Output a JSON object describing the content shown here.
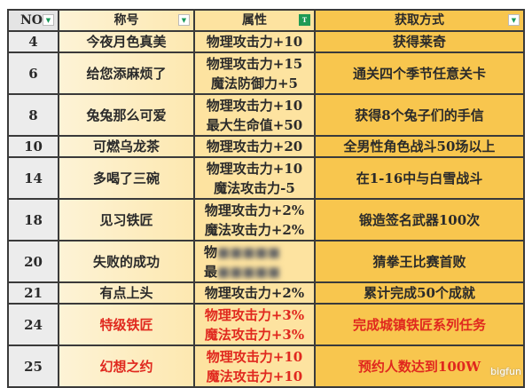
{
  "headers": [
    {
      "label": "NO.",
      "icon": "dropdown-icon"
    },
    {
      "label": "称号",
      "icon": "dropdown-icon"
    },
    {
      "label": "属性",
      "icon": "filter-icon"
    },
    {
      "label": "获取方式",
      "icon": "dropdown-icon"
    }
  ],
  "rows": [
    {
      "no": "4",
      "title": "今夜月色真美",
      "attr": [
        "物理攻击力+10"
      ],
      "method": "获得莱奇",
      "highlight": false
    },
    {
      "no": "6",
      "title": "给您添麻烦了",
      "attr": [
        "物理攻击力+15",
        "魔法防御力+5"
      ],
      "method": "通关四个季节任意关卡",
      "highlight": false
    },
    {
      "no": "8",
      "title": "兔兔那么可爱",
      "attr": [
        "物理攻击力+10",
        "最大生命值+50"
      ],
      "method": "获得8个兔子们的手信",
      "highlight": false
    },
    {
      "no": "10",
      "title": "可燃乌龙茶",
      "attr": [
        "物理攻击力+20"
      ],
      "method": "全男性角色战斗50场以上",
      "highlight": false
    },
    {
      "no": "14",
      "title": "多喝了三碗",
      "attr": [
        "物理攻击力+10",
        "魔法攻击力-5"
      ],
      "method": "在1-16中与白雪战斗",
      "highlight": false
    },
    {
      "no": "18",
      "title": "见习铁匠",
      "attr": [
        "物理攻击力+2%",
        "魔法攻击力+2%"
      ],
      "method": "锻造签名武器100次",
      "highlight": false
    },
    {
      "no": "20",
      "title": "失败的成功",
      "attr": [
        "物",
        "最"
      ],
      "method": "猜拳王比赛首败",
      "highlight": false,
      "blurred": true
    },
    {
      "no": "21",
      "title": "有点上头",
      "attr": [
        "物理攻击力+2%"
      ],
      "method": "累计完成50个成就",
      "highlight": false
    },
    {
      "no": "24",
      "title": "特级铁匠",
      "attr": [
        "物理攻击力+3%",
        "魔法攻击力+3%"
      ],
      "method": "完成城镇铁匠系列任务",
      "highlight": true
    },
    {
      "no": "25",
      "title": "幻想之约",
      "attr": [
        "物理攻击力+10",
        "魔法攻击力+10"
      ],
      "method": "预约人数达到100W",
      "highlight": true
    }
  ],
  "watermark": "bigfun",
  "colors": {
    "highlight": "#e0281e",
    "col_no": "#ececec",
    "col_title": "#fdf3d6",
    "col_attr": "#fde3a0",
    "col_method": "#f8c64e"
  }
}
